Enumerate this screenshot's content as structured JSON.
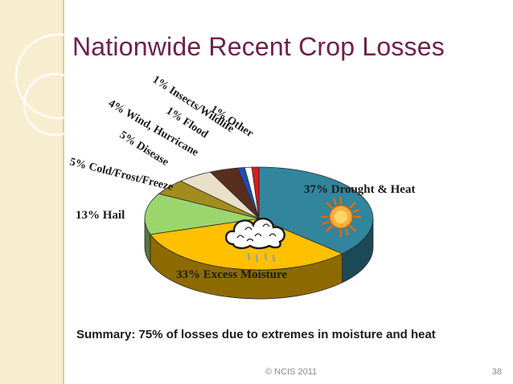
{
  "slide": {
    "title": "Nationwide Recent Crop Losses",
    "summary": "Summary: 75% of losses due to extremes in moisture and heat",
    "footer": "© NCIS 2011",
    "page_number": "38"
  },
  "icons": [
    "sun-icon",
    "rain-cloud-icon"
  ],
  "chart_data": {
    "type": "pie",
    "style": "3d",
    "title": "",
    "slices": [
      {
        "label": "37% Drought & Heat",
        "value": 37,
        "color": "#31859c"
      },
      {
        "label": "33% Excess Moisture",
        "value": 33,
        "color": "#ffc000"
      },
      {
        "label": "13% Hail",
        "value": 13,
        "color": "#9bd66d"
      },
      {
        "label": "5% Cold/Frost/Freeze",
        "value": 5,
        "color": "#a38c1e"
      },
      {
        "label": "5% Disease",
        "value": 5,
        "color": "#e8e0c8"
      },
      {
        "label": "4% Wind, Hurricane",
        "value": 4,
        "color": "#5a2e1e"
      },
      {
        "label": "1% Insects/Wildlife",
        "value": 1,
        "color": "#1f4fb4"
      },
      {
        "label": "1% Flood",
        "value": 1,
        "color": "#ffffff"
      },
      {
        "label": "1% Other",
        "value": 1,
        "color": "#e01b1b"
      }
    ]
  }
}
